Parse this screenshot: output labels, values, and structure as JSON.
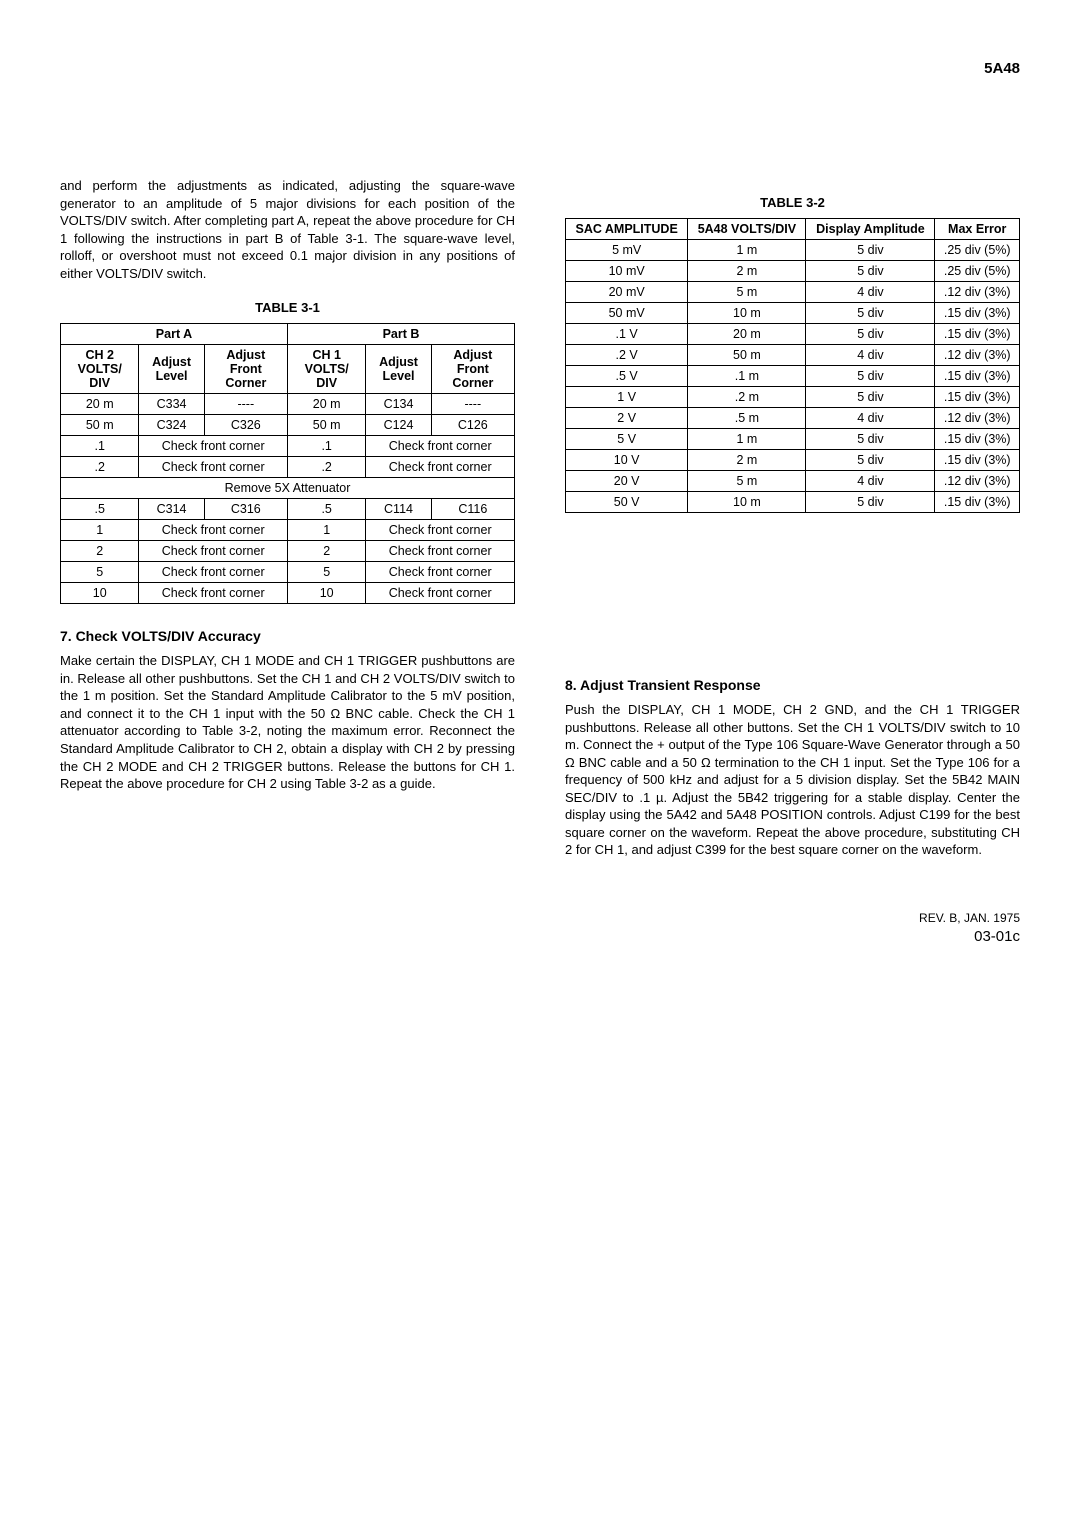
{
  "header": {
    "product": "5A48"
  },
  "para1": "and perform the adjustments as indicated, adjusting the square-wave generator to an amplitude of 5 major divisions for each position of the VOLTS/DIV switch. After completing part A, repeat the above procedure for CH 1 following the instructions in part B of Table 3-1. The square-wave level, rolloff, or overshoot must not exceed 0.1 major division in any positions of either VOLTS/DIV switch.",
  "table31": {
    "caption": "TABLE 3-1",
    "partA": "Part A",
    "partB": "Part B",
    "colA1": "CH 2 VOLTS/ DIV",
    "colA2": "Adjust Level",
    "colA3": "Adjust Front Corner",
    "colB1": "CH 1 VOLTS/ DIV",
    "colB2": "Adjust Level",
    "colB3": "Adjust Front Corner",
    "rows_top": [
      [
        "20 m",
        "C334",
        "----",
        "20 m",
        "C134",
        "----"
      ],
      [
        "50 m",
        "C324",
        "C326",
        "50 m",
        "C124",
        "C126"
      ],
      [
        ".1",
        "Check front corner",
        "",
        ".1",
        "Check front corner",
        ""
      ],
      [
        ".2",
        "Check front corner",
        "",
        ".2",
        "Check front corner",
        ""
      ]
    ],
    "attenuator": "Remove 5X Attenuator",
    "rows_bottom": [
      [
        ".5",
        "C314",
        "C316",
        ".5",
        "C114",
        "C116"
      ],
      [
        "1",
        "Check front corner",
        "",
        "1",
        "Check front corner",
        ""
      ],
      [
        "2",
        "Check front corner",
        "",
        "2",
        "Check front corner",
        ""
      ],
      [
        "5",
        "Check front corner",
        "",
        "5",
        "Check front corner",
        ""
      ],
      [
        "10",
        "Check front corner",
        "",
        "10",
        "Check front corner",
        ""
      ]
    ]
  },
  "section7": {
    "title": "7. Check VOLTS/DIV Accuracy",
    "body": "Make certain the DISPLAY, CH 1 MODE and CH 1 TRIGGER pushbuttons are in. Release all other pushbuttons. Set the CH 1 and CH 2 VOLTS/DIV switch to the 1 m position. Set the Standard Amplitude Calibrator to the 5 mV position, and connect it to the CH 1 input with the 50 Ω BNC cable. Check the CH 1 attenuator according to Table 3-2, noting the maximum error. Reconnect the Standard Amplitude Calibrator to CH 2, obtain a display with CH 2 by pressing the CH 2 MODE and CH 2 TRIGGER buttons. Release the buttons for CH 1. Repeat the above procedure for CH 2 using Table 3-2 as a guide."
  },
  "table32": {
    "caption": "TABLE 3-2",
    "cols": [
      "SAC AMPLITUDE",
      "5A48 VOLTS/DIV",
      "Display Amplitude",
      "Max Error"
    ],
    "rows": [
      [
        "5 mV",
        "1 m",
        "5 div",
        ".25 div (5%)"
      ],
      [
        "10 mV",
        "2 m",
        "5 div",
        ".25 div (5%)"
      ],
      [
        "20 mV",
        "5 m",
        "4 div",
        ".12 div (3%)"
      ],
      [
        "50 mV",
        "10 m",
        "5 div",
        ".15 div (3%)"
      ],
      [
        ".1 V",
        "20 m",
        "5 div",
        ".15 div (3%)"
      ],
      [
        ".2 V",
        "50 m",
        "4 div",
        ".12 div (3%)"
      ],
      [
        ".5 V",
        ".1 m",
        "5 div",
        ".15 div (3%)"
      ],
      [
        "1 V",
        ".2 m",
        "5 div",
        ".15 div (3%)"
      ],
      [
        "2 V",
        ".5 m",
        "4 div",
        ".12 div (3%)"
      ],
      [
        "5 V",
        "1 m",
        "5 div",
        ".15 div (3%)"
      ],
      [
        "10 V",
        "2 m",
        "5 div",
        ".15 div (3%)"
      ],
      [
        "20 V",
        "5 m",
        "4 div",
        ".12 div (3%)"
      ],
      [
        "50 V",
        "10 m",
        "5 div",
        ".15 div (3%)"
      ]
    ]
  },
  "section8": {
    "title": "8. Adjust Transient Response",
    "body": "Push the DISPLAY, CH 1 MODE, CH 2 GND, and the CH 1 TRIGGER pushbuttons. Release all other buttons. Set the CH 1 VOLTS/DIV switch to 10 m. Connect the + output of the Type 106 Square-Wave Generator through a 50 Ω BNC cable and a 50 Ω termination to the CH 1 input. Set the Type 106 for a frequency of 500 kHz and adjust for a 5 division display. Set the 5B42 MAIN SEC/DIV to .1 µ. Adjust the 5B42 triggering for a stable display. Center the display using the 5A42 and 5A48 POSITION controls. Adjust C199 for the best square corner on the waveform. Repeat the above procedure, substituting CH 2 for CH 1, and adjust C399 for the best square corner on the waveform."
  },
  "footer": {
    "rev": "REV. B, JAN. 1975",
    "page": "03-01c"
  }
}
